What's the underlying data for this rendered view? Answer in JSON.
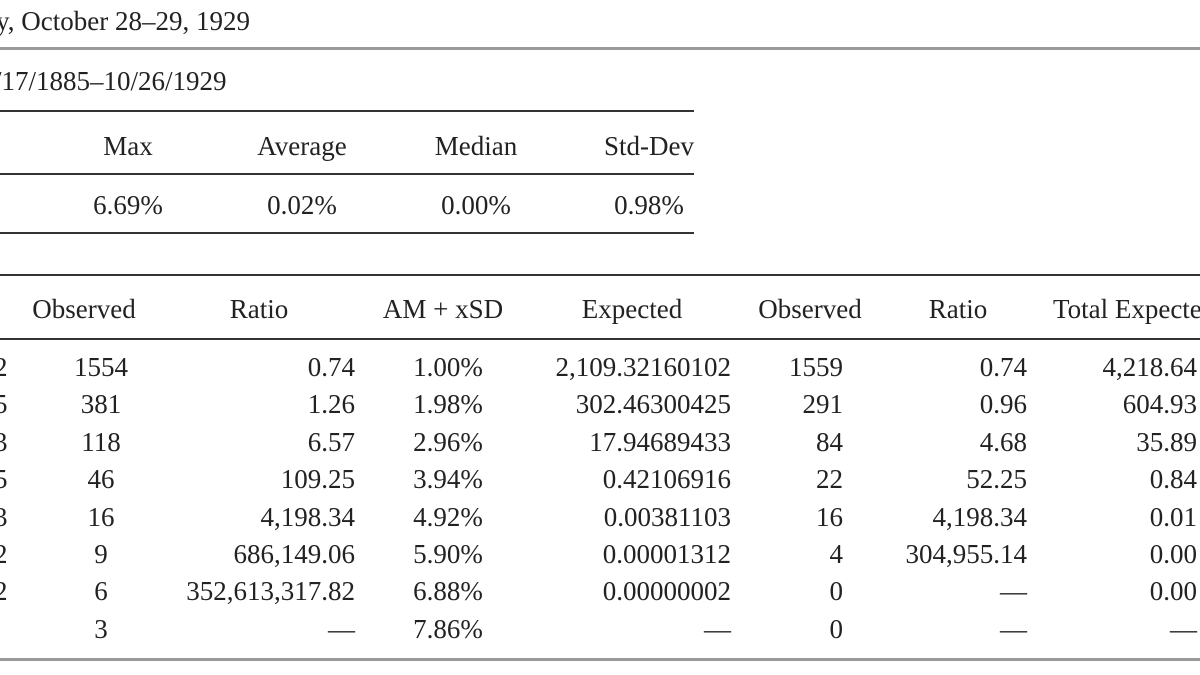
{
  "title": "y, October 28–29, 1929",
  "period": "/17/1885–10/26/1929",
  "stats": {
    "headers": [
      "Max",
      "Average",
      "Median",
      "Std-Dev"
    ],
    "values": [
      "6.69%",
      "0.02%",
      "0.00%",
      "0.98%"
    ]
  },
  "table": {
    "headers": [
      "Observed",
      "Ratio",
      "AM + xSD",
      "Expected",
      "Observed",
      "Ratio",
      "Total Expecte"
    ],
    "rows": [
      {
        "lead": "2",
        "obs1": "1554",
        "ratio1": "0.74",
        "am": "1.00%",
        "exp": "2,109.32160102",
        "obs2": "1559",
        "ratio2": "0.74",
        "total": "4,218.64"
      },
      {
        "lead": "5",
        "obs1": "381",
        "ratio1": "1.26",
        "am": "1.98%",
        "exp": "302.46300425",
        "obs2": "291",
        "ratio2": "0.96",
        "total": "604.93"
      },
      {
        "lead": "3",
        "obs1": "118",
        "ratio1": "6.57",
        "am": "2.96%",
        "exp": "17.94689433",
        "obs2": "84",
        "ratio2": "4.68",
        "total": "35.89"
      },
      {
        "lead": "5",
        "obs1": "46",
        "ratio1": "109.25",
        "am": "3.94%",
        "exp": "0.42106916",
        "obs2": "22",
        "ratio2": "52.25",
        "total": "0.84"
      },
      {
        "lead": "3",
        "obs1": "16",
        "ratio1": "4,198.34",
        "am": "4.92%",
        "exp": "0.00381103",
        "obs2": "16",
        "ratio2": "4,198.34",
        "total": "0.01"
      },
      {
        "lead": "2",
        "obs1": "9",
        "ratio1": "686,149.06",
        "am": "5.90%",
        "exp": "0.00001312",
        "obs2": "4",
        "ratio2": "304,955.14",
        "total": "0.00"
      },
      {
        "lead": "2",
        "obs1": "6",
        "ratio1": "352,613,317.82",
        "am": "6.88%",
        "exp": "0.00000002",
        "obs2": "0",
        "ratio2": "—",
        "total": "0.00"
      },
      {
        "lead": "",
        "obs1": "3",
        "ratio1": "—",
        "am": "7.86%",
        "exp": "—",
        "obs2": "0",
        "ratio2": "—",
        "total": "—"
      }
    ]
  }
}
